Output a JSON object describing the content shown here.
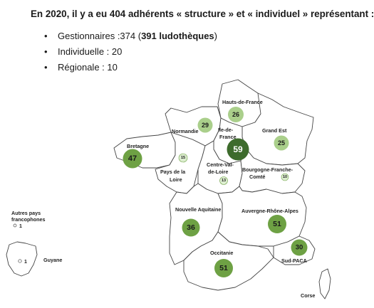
{
  "header": {
    "title": "En 2020, il y a eu 404 adhérents « structure » et « individuel » représentant :"
  },
  "bullets": {
    "gestionnaires_label": "Gestionnaires :374 (",
    "gestionnaires_bold": "391 ludothèques",
    "gestionnaires_close": ")",
    "individuelle": "Individuelle : 20",
    "regionale": "Régionale : 10"
  },
  "regions": {
    "hauts_de_france": {
      "name": "Hauts-de-France",
      "count": "26"
    },
    "normandie": {
      "name": "Normandie",
      "count": "29"
    },
    "ile_de_france": {
      "name_l1": "Ile-de-",
      "name_l2": "France",
      "count": "59"
    },
    "grand_est": {
      "name": "Grand Est",
      "count": "25"
    },
    "bretagne": {
      "name": "Bretagne",
      "count": "47"
    },
    "pays_de_la_loire": {
      "name_l1": "Pays de la",
      "name_l2": "Loire",
      "count": "15"
    },
    "centre_val_de_loire": {
      "name_l1": "Centre-Val-",
      "name_l2": "de-Loire",
      "count": "13"
    },
    "bourgogne_franche_comte": {
      "name_l1": "Bourgogne-Franche-",
      "name_l2": "Comté",
      "count": "10"
    },
    "nouvelle_aquitaine": {
      "name": "Nouvelle Aquitaine",
      "count": "36"
    },
    "auvergne_rhone_alpes": {
      "name": "Auvergne-Rhône-Alpes",
      "count": "51"
    },
    "occitanie": {
      "name": "Occitanie",
      "count": "51"
    },
    "sud_paca": {
      "name": "Sud-PACA",
      "count": "30"
    },
    "corse": {
      "name": "Corse"
    },
    "guyane": {
      "name": "Guyane",
      "count": "1"
    },
    "autres_pays": {
      "name_l1": "Autres pays",
      "name_l2": "francophones",
      "count": "1"
    }
  },
  "colors": {
    "dark_green": "#3d6b2c",
    "mid_green": "#6ea144",
    "light_green": "#aacf8b",
    "pale_green": "#dcedcf",
    "map_outline": "#444444"
  }
}
